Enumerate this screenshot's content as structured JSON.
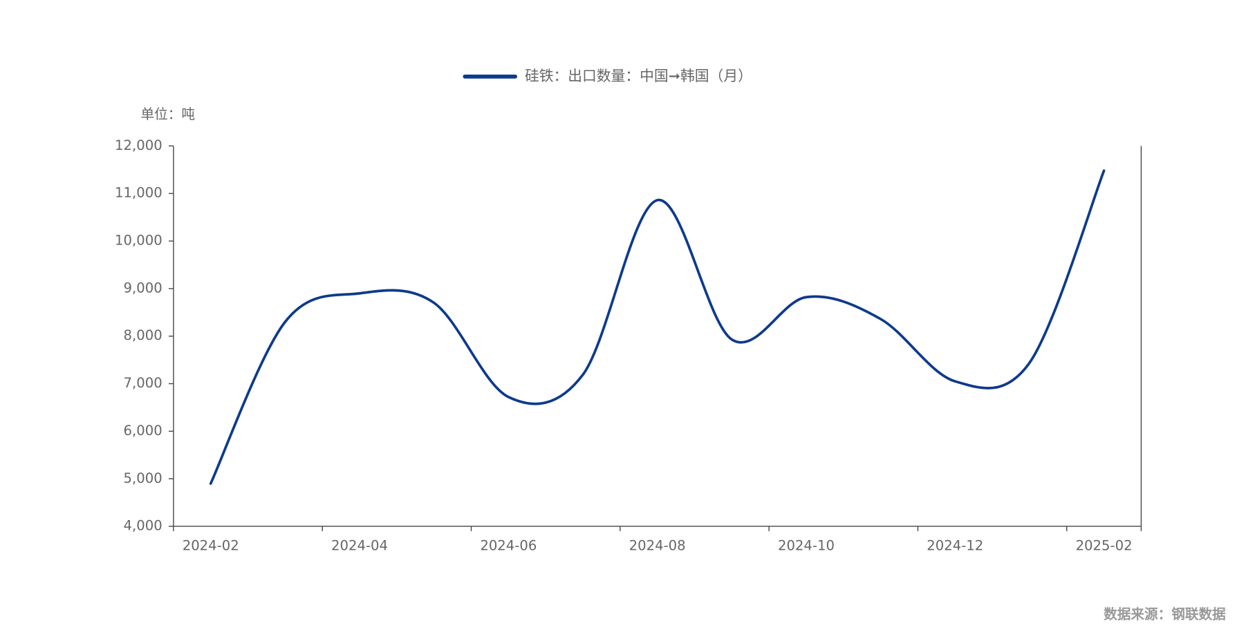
{
  "chart_data": {
    "type": "line",
    "unit": "单位：吨",
    "source": "数据来源：钢联数据",
    "categories": [
      "2024-02",
      null,
      "2024-04",
      null,
      "2024-06",
      null,
      "2024-08",
      null,
      "2024-10",
      null,
      "2024-12",
      null,
      "2025-02"
    ],
    "series": [
      {
        "name": "硅铁：出口数量：中国➞韩国（月）",
        "color": "#0d3a8c",
        "values": [
          4900,
          8300,
          8900,
          8700,
          6720,
          7190,
          10860,
          7930,
          8820,
          8360,
          7050,
          7440,
          11480
        ]
      }
    ],
    "ylim": [
      4000,
      12000
    ],
    "yticks": [
      {
        "value": 4000,
        "label": "4,000"
      },
      {
        "value": 5000,
        "label": "5,000"
      },
      {
        "value": 6000,
        "label": "6,000"
      },
      {
        "value": 7000,
        "label": "7,000"
      },
      {
        "value": 8000,
        "label": "8,000"
      },
      {
        "value": 9000,
        "label": "9,000"
      },
      {
        "value": 10000,
        "label": "10,000"
      },
      {
        "value": 11000,
        "label": "11,000"
      },
      {
        "value": 12000,
        "label": "12,000"
      }
    ],
    "smooth": true
  }
}
